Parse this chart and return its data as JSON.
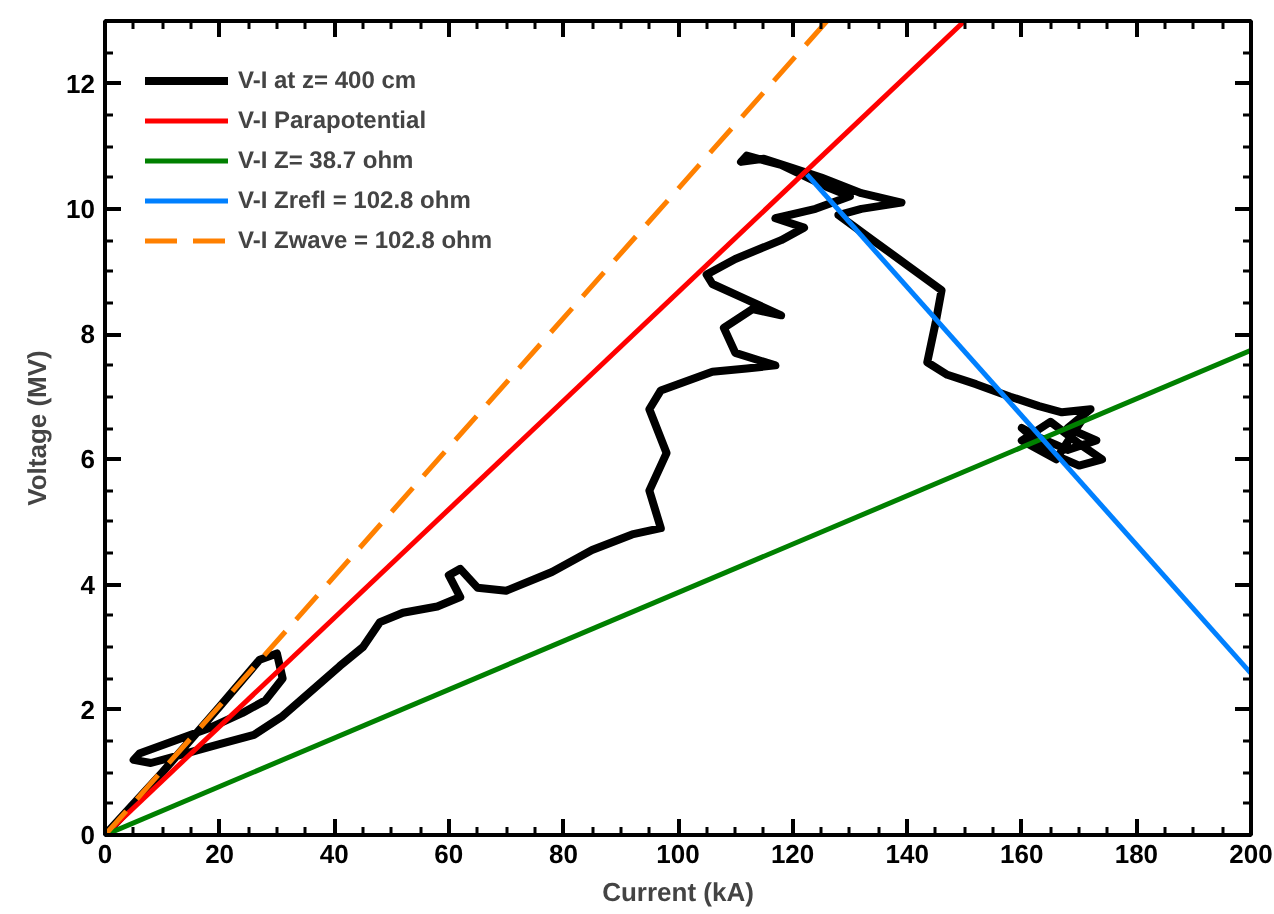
{
  "chart_data": {
    "type": "line",
    "xlabel": "Current (kA)",
    "ylabel": "Voltage (MV)",
    "xlim": [
      0,
      200
    ],
    "ylim": [
      0,
      13
    ],
    "xticks": [
      0,
      20,
      40,
      60,
      80,
      100,
      120,
      140,
      160,
      180,
      200
    ],
    "yticks": [
      0,
      2,
      4,
      6,
      8,
      10,
      12
    ],
    "grid": false,
    "legend": "top left",
    "marker": "none",
    "series": [
      {
        "name": "V-I at z= 400 cm",
        "color": "#000000",
        "x": [
          0,
          10,
          20,
          27,
          30,
          31,
          28,
          24,
          18,
          12,
          6,
          5,
          8,
          14,
          20,
          26,
          31,
          36,
          41,
          45,
          48,
          52,
          58,
          62,
          60,
          62,
          65,
          70,
          78,
          85,
          92,
          97,
          95,
          98,
          95,
          97,
          100,
          106,
          112,
          117,
          110,
          108,
          113,
          118,
          112,
          106,
          105,
          110,
          118,
          122,
          117,
          124,
          130,
          126,
          118,
          112,
          111,
          115,
          120,
          125,
          132,
          139,
          132,
          128,
          134,
          140,
          146,
          145,
          143.5,
          147,
          152,
          158,
          163,
          167,
          172,
          168,
          173,
          168,
          163,
          160,
          165,
          170,
          174,
          170,
          165,
          160,
          166,
          171
        ],
        "values": [
          0,
          1.0,
          2.05,
          2.8,
          2.9,
          2.5,
          2.15,
          1.95,
          1.7,
          1.5,
          1.3,
          1.2,
          1.15,
          1.3,
          1.45,
          1.6,
          1.9,
          2.3,
          2.7,
          3.0,
          3.4,
          3.55,
          3.65,
          3.8,
          4.15,
          4.25,
          3.95,
          3.9,
          4.2,
          4.55,
          4.8,
          4.9,
          5.5,
          6.1,
          6.8,
          7.1,
          7.2,
          7.4,
          7.45,
          7.5,
          7.7,
          8.1,
          8.4,
          8.3,
          8.55,
          8.8,
          8.95,
          9.2,
          9.5,
          9.7,
          9.85,
          10.0,
          10.2,
          10.35,
          10.7,
          10.85,
          10.75,
          10.8,
          10.65,
          10.5,
          10.25,
          10.1,
          10.0,
          9.9,
          9.5,
          9.1,
          8.7,
          8.2,
          7.55,
          7.35,
          7.2,
          7.0,
          6.85,
          6.75,
          6.8,
          6.5,
          6.3,
          6.15,
          6.35,
          6.5,
          6.1,
          5.9,
          6.0,
          6.25,
          6.6,
          6.3,
          6.0,
          6.7
        ]
      },
      {
        "name": "V-I Parapotential",
        "color": "#ff0000",
        "x": [
          0,
          150
        ],
        "values": [
          0,
          13
        ]
      },
      {
        "name": "V-I Z= 38.7 ohm",
        "color": "#008000",
        "x": [
          0,
          200
        ],
        "values": [
          0,
          7.74
        ]
      },
      {
        "name": "V-I Zrefl = 102.8 ohm",
        "color": "#0080ff",
        "x": [
          122.5,
          200
        ],
        "values": [
          10.55,
          2.58
        ]
      },
      {
        "name": "V-I Zwave = 102.8 ohm",
        "color": "#ff8000",
        "x": [
          0,
          126
        ],
        "values": [
          0,
          13
        ],
        "line_style": "dashed"
      }
    ]
  }
}
